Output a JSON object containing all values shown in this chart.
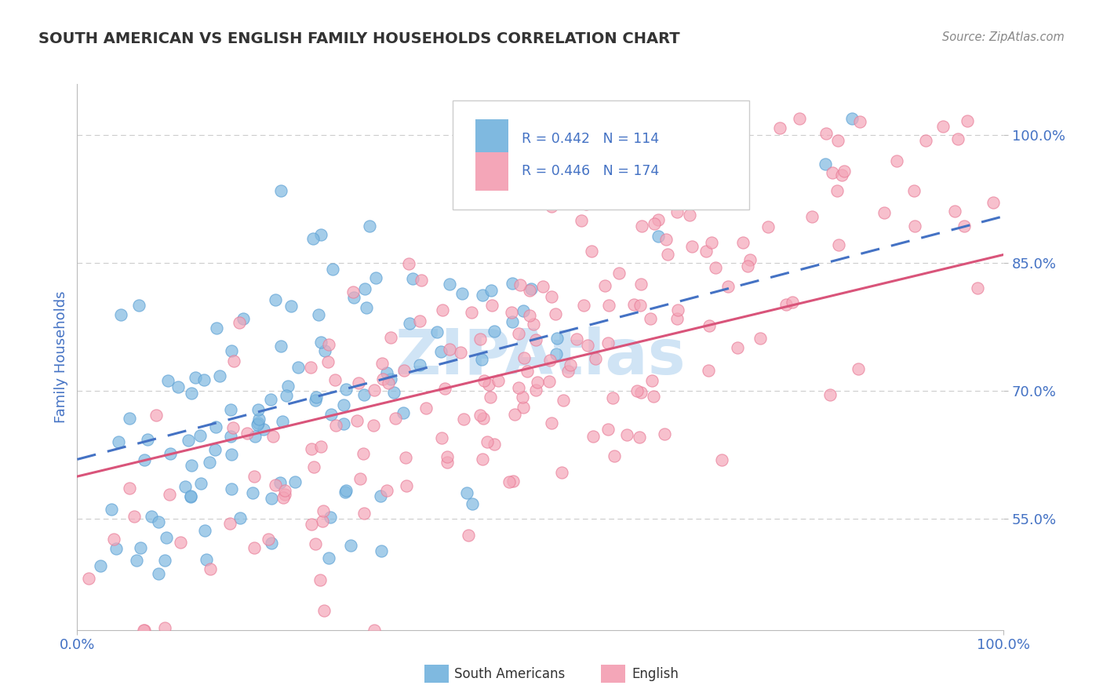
{
  "title": "SOUTH AMERICAN VS ENGLISH FAMILY HOUSEHOLDS CORRELATION CHART",
  "source": "Source: ZipAtlas.com",
  "ylabel": "Family Households",
  "y_tick_labels": [
    "55.0%",
    "70.0%",
    "85.0%",
    "100.0%"
  ],
  "y_tick_values": [
    0.55,
    0.7,
    0.85,
    1.0
  ],
  "x_min": 0.0,
  "x_max": 1.0,
  "y_min": 0.42,
  "y_max": 1.06,
  "blue_R": 0.442,
  "blue_N": 114,
  "pink_R": 0.446,
  "pink_N": 174,
  "blue_color": "#7fb9e0",
  "pink_color": "#f4a6b8",
  "blue_edge_color": "#5a9fd4",
  "pink_edge_color": "#e87a96",
  "blue_line_color": "#4472c4",
  "pink_line_color": "#d9547a",
  "title_color": "#333333",
  "axis_label_color": "#4472c4",
  "background_color": "#ffffff",
  "grid_color": "#cccccc",
  "watermark_color": "#d0e4f5",
  "blue_trend_intercept": 0.62,
  "blue_trend_slope": 0.285,
  "pink_trend_intercept": 0.6,
  "pink_trend_slope": 0.26,
  "seed": 42
}
